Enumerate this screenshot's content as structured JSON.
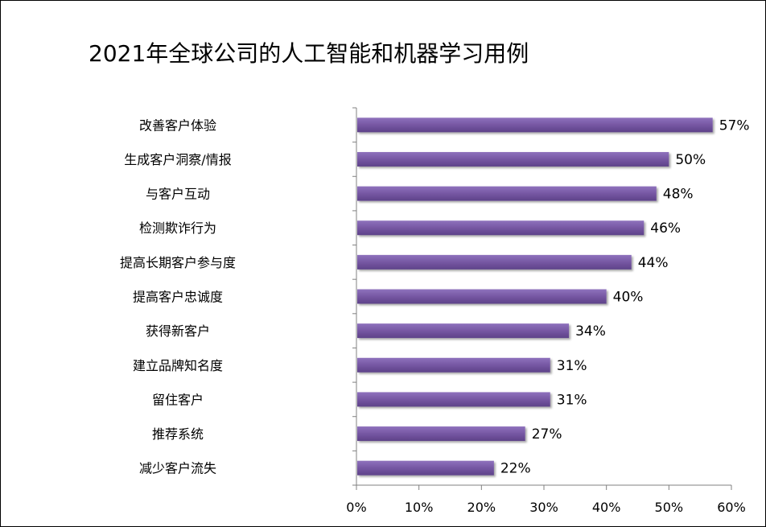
{
  "chart_data": {
    "type": "bar",
    "orientation": "horizontal",
    "title": "2021年全球公司的人工智能和机器学习用例",
    "categories": [
      "改善客户体验",
      "生成客户洞察/情报",
      "与客户互动",
      "检测欺诈行为",
      "提高长期客户参与度",
      "提高客户忠诚度",
      "获得新客户",
      "建立品牌知名度",
      "留住客户",
      "推荐系统",
      "减少客户流失"
    ],
    "values": [
      57,
      50,
      48,
      46,
      44,
      40,
      34,
      31,
      31,
      27,
      22
    ],
    "value_labels": [
      "57%",
      "50%",
      "48%",
      "46%",
      "44%",
      "40%",
      "34%",
      "31%",
      "31%",
      "27%",
      "22%"
    ],
    "x_ticks": [
      0,
      10,
      20,
      30,
      40,
      50,
      60
    ],
    "x_tick_labels": [
      "0%",
      "10%",
      "20%",
      "30%",
      "40%",
      "50%",
      "60%"
    ],
    "xlim": [
      0,
      60
    ],
    "xlabel": "",
    "ylabel": "",
    "grid": false,
    "legend": "none",
    "bar_color": "#7b5ea7"
  }
}
